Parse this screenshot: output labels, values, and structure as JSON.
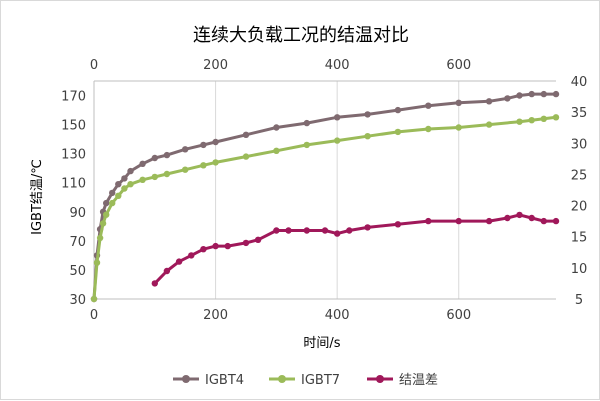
{
  "chart_data": {
    "type": "line",
    "title": "连续大负载工况的结温对比",
    "xlabel": "时间/s",
    "ylabel": "IGBT结温/℃",
    "xlim": [
      0,
      760
    ],
    "ylim": [
      30,
      180
    ],
    "y2lim": [
      5,
      40
    ],
    "x_ticks": [
      0,
      200,
      400,
      600
    ],
    "x_top_ticks": [
      0,
      200,
      400,
      600
    ],
    "y_ticks": [
      30,
      50,
      70,
      90,
      110,
      130,
      150,
      170
    ],
    "y2_ticks": [
      5,
      10,
      15,
      20,
      25,
      30,
      35,
      40
    ],
    "grid": "vertical",
    "legend_position": "bottom",
    "series": [
      {
        "name": "IGBT4",
        "axis": "left",
        "color": "#7f6a70",
        "x": [
          0,
          5,
          10,
          15,
          20,
          30,
          40,
          50,
          60,
          80,
          100,
          120,
          150,
          180,
          200,
          250,
          300,
          350,
          400,
          450,
          500,
          550,
          600,
          650,
          680,
          700,
          720,
          740,
          760
        ],
        "y": [
          30,
          60,
          78,
          90,
          96,
          103,
          109,
          113,
          118,
          123,
          127,
          129,
          133,
          136,
          138,
          143,
          148,
          151,
          155,
          157,
          160,
          163,
          165,
          166,
          168,
          170,
          171,
          171,
          171
        ]
      },
      {
        "name": "IGBT7",
        "axis": "left",
        "color": "#9bbb59",
        "x": [
          0,
          5,
          10,
          15,
          20,
          30,
          40,
          50,
          60,
          80,
          100,
          120,
          150,
          180,
          200,
          250,
          300,
          350,
          400,
          450,
          500,
          550,
          600,
          650,
          700,
          720,
          740,
          760
        ],
        "y": [
          30,
          55,
          72,
          82,
          88,
          96,
          101,
          106,
          109,
          112,
          114,
          116,
          119,
          122,
          124,
          128,
          132,
          136,
          139,
          142,
          145,
          147,
          148,
          150,
          152,
          153,
          154,
          155
        ]
      },
      {
        "name": "结温差",
        "axis": "right",
        "color": "#a0185a",
        "x": [
          100,
          120,
          140,
          160,
          180,
          200,
          220,
          250,
          270,
          300,
          320,
          350,
          380,
          400,
          420,
          450,
          500,
          550,
          600,
          650,
          680,
          700,
          720,
          740,
          760
        ],
        "y": [
          7.5,
          9.5,
          11,
          12,
          13,
          13.5,
          13.5,
          14,
          14.5,
          16,
          16,
          16,
          16,
          15.5,
          16,
          16.5,
          17,
          17.5,
          17.5,
          17.5,
          18,
          18.5,
          18,
          17.5,
          17.5
        ]
      }
    ]
  }
}
